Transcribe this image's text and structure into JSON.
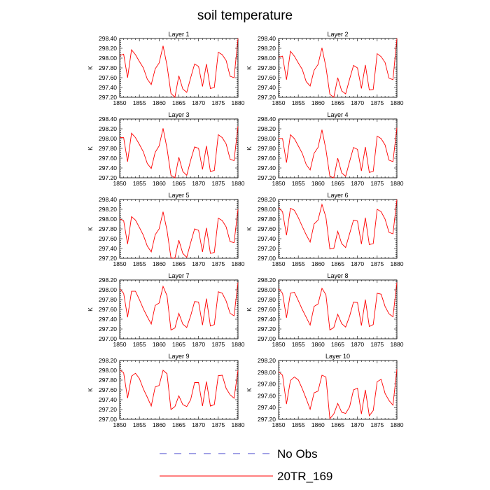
{
  "title": "soil temperature",
  "colors": {
    "model_line": "#ff0000",
    "obs_line": "#4444cc",
    "axis": "#000000",
    "background": "#ffffff"
  },
  "legend": {
    "items": [
      {
        "label": "No Obs",
        "style": "dashed",
        "color": "#4444cc"
      },
      {
        "label": "20TR_169",
        "style": "solid",
        "color": "#ff0000"
      }
    ]
  },
  "chart_data": [
    {
      "type": "line",
      "title": "Layer 1",
      "ylabel": "K",
      "xlim": [
        1850,
        1880
      ],
      "ylim": [
        297.2,
        298.4
      ],
      "xticks": [
        1850,
        1855,
        1860,
        1865,
        1870,
        1875,
        1880
      ],
      "yticks": [
        "297.20",
        "297.40",
        "297.60",
        "297.80",
        "298.00",
        "298.20",
        "298.40"
      ],
      "x": [
        1850,
        1851,
        1852,
        1853,
        1854,
        1855,
        1856,
        1857,
        1858,
        1859,
        1860,
        1861,
        1862,
        1863,
        1864,
        1865,
        1866,
        1867,
        1868,
        1869,
        1870,
        1871,
        1872,
        1873,
        1874,
        1875,
        1876,
        1877,
        1878,
        1879,
        1880
      ],
      "series": [
        {
          "name": "20TR_169",
          "values": [
            298.05,
            298.08,
            297.6,
            298.17,
            298.07,
            297.93,
            297.8,
            297.57,
            297.46,
            297.78,
            297.9,
            298.25,
            297.85,
            297.28,
            297.2,
            297.64,
            297.37,
            297.3,
            297.6,
            297.88,
            297.83,
            297.42,
            297.88,
            297.38,
            297.4,
            298.12,
            298.07,
            297.95,
            297.63,
            297.6,
            298.4
          ]
        }
      ]
    },
    {
      "type": "line",
      "title": "Layer 2",
      "ylabel": "K",
      "xlim": [
        1850,
        1880
      ],
      "ylim": [
        297.2,
        298.4
      ],
      "xticks": [
        1850,
        1855,
        1860,
        1865,
        1870,
        1875,
        1880
      ],
      "yticks": [
        "297.20",
        "297.40",
        "297.60",
        "297.80",
        "298.00",
        "298.20",
        "298.40"
      ],
      "x": [
        1850,
        1851,
        1852,
        1853,
        1854,
        1855,
        1856,
        1857,
        1858,
        1859,
        1860,
        1861,
        1862,
        1863,
        1864,
        1865,
        1866,
        1867,
        1868,
        1869,
        1870,
        1871,
        1872,
        1873,
        1874,
        1875,
        1876,
        1877,
        1878,
        1879,
        1880
      ],
      "series": [
        {
          "name": "20TR_169",
          "values": [
            298.02,
            298.04,
            297.56,
            298.14,
            298.04,
            297.9,
            297.77,
            297.52,
            297.43,
            297.75,
            297.87,
            298.21,
            297.82,
            297.26,
            297.2,
            297.6,
            297.33,
            297.27,
            297.57,
            297.85,
            297.8,
            297.38,
            297.86,
            297.35,
            297.36,
            298.09,
            298.03,
            297.91,
            297.59,
            297.56,
            298.4
          ]
        }
      ]
    },
    {
      "type": "line",
      "title": "Layer 3",
      "ylabel": "K",
      "xlim": [
        1850,
        1880
      ],
      "ylim": [
        297.2,
        298.4
      ],
      "xticks": [
        1850,
        1855,
        1860,
        1865,
        1870,
        1875,
        1880
      ],
      "yticks": [
        "297.20",
        "297.40",
        "297.60",
        "297.80",
        "298.00",
        "298.20",
        "298.40"
      ],
      "x": [
        1850,
        1851,
        1852,
        1853,
        1854,
        1855,
        1856,
        1857,
        1858,
        1859,
        1860,
        1861,
        1862,
        1863,
        1864,
        1865,
        1866,
        1867,
        1868,
        1869,
        1870,
        1871,
        1872,
        1873,
        1874,
        1875,
        1876,
        1877,
        1878,
        1879,
        1880
      ],
      "series": [
        {
          "name": "20TR_169",
          "values": [
            298.02,
            298.02,
            297.53,
            298.11,
            298.02,
            297.88,
            297.73,
            297.49,
            297.39,
            297.72,
            297.85,
            298.21,
            297.8,
            297.25,
            297.2,
            297.62,
            297.33,
            297.25,
            297.56,
            297.83,
            297.8,
            297.37,
            297.85,
            297.33,
            297.35,
            298.08,
            298.02,
            297.89,
            297.58,
            297.55,
            298.25
          ]
        }
      ]
    },
    {
      "type": "line",
      "title": "Layer 4",
      "ylabel": "K",
      "xlim": [
        1850,
        1880
      ],
      "ylim": [
        297.2,
        298.4
      ],
      "xticks": [
        1850,
        1855,
        1860,
        1865,
        1870,
        1875,
        1880
      ],
      "yticks": [
        "297.20",
        "297.40",
        "297.60",
        "297.80",
        "298.00",
        "298.20",
        "298.40"
      ],
      "x": [
        1850,
        1851,
        1852,
        1853,
        1854,
        1855,
        1856,
        1857,
        1858,
        1859,
        1860,
        1861,
        1862,
        1863,
        1864,
        1865,
        1866,
        1867,
        1868,
        1869,
        1870,
        1871,
        1872,
        1873,
        1874,
        1875,
        1876,
        1877,
        1878,
        1879,
        1880
      ],
      "series": [
        {
          "name": "20TR_169",
          "values": [
            298.0,
            298.0,
            297.51,
            298.08,
            298.0,
            297.85,
            297.7,
            297.47,
            297.36,
            297.7,
            297.82,
            298.18,
            297.78,
            297.23,
            297.2,
            297.6,
            297.3,
            297.23,
            297.53,
            297.82,
            297.78,
            297.34,
            297.83,
            297.31,
            297.33,
            298.05,
            298.0,
            297.87,
            297.56,
            297.53,
            298.22
          ]
        }
      ]
    },
    {
      "type": "line",
      "title": "Layer 5",
      "ylabel": "K",
      "xlim": [
        1850,
        1880
      ],
      "ylim": [
        297.2,
        298.4
      ],
      "xticks": [
        1850,
        1855,
        1860,
        1865,
        1870,
        1875,
        1880
      ],
      "yticks": [
        "297.20",
        "297.40",
        "297.60",
        "297.80",
        "298.00",
        "298.20",
        "298.40"
      ],
      "x": [
        1850,
        1851,
        1852,
        1853,
        1854,
        1855,
        1856,
        1857,
        1858,
        1859,
        1860,
        1861,
        1862,
        1863,
        1864,
        1865,
        1866,
        1867,
        1868,
        1869,
        1870,
        1871,
        1872,
        1873,
        1874,
        1875,
        1876,
        1877,
        1878,
        1879,
        1880
      ],
      "series": [
        {
          "name": "20TR_169",
          "values": [
            298.0,
            297.97,
            297.49,
            298.05,
            297.98,
            297.83,
            297.67,
            297.45,
            297.33,
            297.68,
            297.8,
            298.15,
            297.77,
            297.21,
            297.2,
            297.57,
            297.3,
            297.22,
            297.52,
            297.8,
            297.77,
            297.33,
            297.82,
            297.3,
            297.32,
            298.02,
            297.97,
            297.84,
            297.54,
            297.52,
            298.2
          ]
        }
      ]
    },
    {
      "type": "line",
      "title": "Layer 6",
      "ylabel": "K",
      "xlim": [
        1850,
        1880
      ],
      "ylim": [
        297.0,
        298.2
      ],
      "xticks": [
        1850,
        1855,
        1860,
        1865,
        1870,
        1875,
        1880
      ],
      "yticks": [
        "297.00",
        "297.20",
        "297.40",
        "297.60",
        "297.80",
        "298.00",
        "298.20"
      ],
      "x": [
        1850,
        1851,
        1852,
        1853,
        1854,
        1855,
        1856,
        1857,
        1858,
        1859,
        1860,
        1861,
        1862,
        1863,
        1864,
        1865,
        1866,
        1867,
        1868,
        1869,
        1870,
        1871,
        1872,
        1873,
        1874,
        1875,
        1876,
        1877,
        1878,
        1879,
        1880
      ],
      "series": [
        {
          "name": "20TR_169",
          "values": [
            298.03,
            297.95,
            297.47,
            298.02,
            297.98,
            297.83,
            297.65,
            297.48,
            297.33,
            297.7,
            297.78,
            298.1,
            297.84,
            297.19,
            297.2,
            297.55,
            297.3,
            297.22,
            297.5,
            297.78,
            297.76,
            297.29,
            297.83,
            297.28,
            297.3,
            298.0,
            297.95,
            297.8,
            297.53,
            297.5,
            298.2
          ]
        }
      ]
    },
    {
      "type": "line",
      "title": "Layer 7",
      "ylabel": "K",
      "xlim": [
        1850,
        1880
      ],
      "ylim": [
        297.0,
        298.2
      ],
      "xticks": [
        1850,
        1855,
        1860,
        1865,
        1870,
        1875,
        1880
      ],
      "yticks": [
        "297.00",
        "297.20",
        "297.40",
        "297.60",
        "297.80",
        "298.00",
        "298.20"
      ],
      "x": [
        1850,
        1851,
        1852,
        1853,
        1854,
        1855,
        1856,
        1857,
        1858,
        1859,
        1860,
        1861,
        1862,
        1863,
        1864,
        1865,
        1866,
        1867,
        1868,
        1869,
        1870,
        1871,
        1872,
        1873,
        1874,
        1875,
        1876,
        1877,
        1878,
        1879,
        1880
      ],
      "series": [
        {
          "name": "20TR_169",
          "values": [
            298.02,
            297.93,
            297.44,
            297.97,
            297.97,
            297.8,
            297.61,
            297.45,
            297.3,
            297.68,
            297.73,
            298.07,
            297.88,
            297.18,
            297.22,
            297.52,
            297.3,
            297.23,
            297.47,
            297.76,
            297.75,
            297.28,
            297.82,
            297.26,
            297.29,
            297.96,
            297.93,
            297.77,
            297.52,
            297.47,
            298.15
          ]
        }
      ]
    },
    {
      "type": "line",
      "title": "Layer 8",
      "ylabel": "K",
      "xlim": [
        1850,
        1880
      ],
      "ylim": [
        297.0,
        298.2
      ],
      "xticks": [
        1850,
        1855,
        1860,
        1865,
        1870,
        1875,
        1880
      ],
      "yticks": [
        "297.00",
        "297.20",
        "297.40",
        "297.60",
        "297.80",
        "298.00",
        "298.20"
      ],
      "x": [
        1850,
        1851,
        1852,
        1853,
        1854,
        1855,
        1856,
        1857,
        1858,
        1859,
        1860,
        1861,
        1862,
        1863,
        1864,
        1865,
        1866,
        1867,
        1868,
        1869,
        1870,
        1871,
        1872,
        1873,
        1874,
        1875,
        1876,
        1877,
        1878,
        1879,
        1880
      ],
      "series": [
        {
          "name": "20TR_169",
          "values": [
            298.02,
            297.93,
            297.43,
            297.93,
            297.95,
            297.78,
            297.6,
            297.44,
            297.28,
            297.66,
            297.71,
            298.03,
            297.9,
            297.18,
            297.23,
            297.5,
            297.31,
            297.24,
            297.46,
            297.75,
            297.74,
            297.27,
            297.8,
            297.25,
            297.29,
            297.93,
            297.91,
            297.66,
            297.51,
            297.45,
            298.15
          ]
        }
      ]
    },
    {
      "type": "line",
      "title": "Layer 9",
      "ylabel": "K",
      "xlim": [
        1850,
        1880
      ],
      "ylim": [
        297.0,
        298.2
      ],
      "xticks": [
        1850,
        1855,
        1860,
        1865,
        1870,
        1875,
        1880
      ],
      "yticks": [
        "297.00",
        "297.20",
        "297.40",
        "297.60",
        "297.80",
        "298.00",
        "298.20"
      ],
      "x": [
        1850,
        1851,
        1852,
        1853,
        1854,
        1855,
        1856,
        1857,
        1858,
        1859,
        1860,
        1861,
        1862,
        1863,
        1864,
        1865,
        1866,
        1867,
        1868,
        1869,
        1870,
        1871,
        1872,
        1873,
        1874,
        1875,
        1876,
        1877,
        1878,
        1879,
        1880
      ],
      "series": [
        {
          "name": "20TR_169",
          "values": [
            298.01,
            297.95,
            297.43,
            297.88,
            297.94,
            297.83,
            297.62,
            297.45,
            297.27,
            297.66,
            297.69,
            298.0,
            297.93,
            297.2,
            297.26,
            297.48,
            297.3,
            297.26,
            297.4,
            297.75,
            297.75,
            297.27,
            297.77,
            297.27,
            297.3,
            297.89,
            297.9,
            297.63,
            297.5,
            297.43,
            298.0
          ]
        }
      ]
    },
    {
      "type": "line",
      "title": "Layer 10",
      "ylabel": "K",
      "xlim": [
        1850,
        1880
      ],
      "ylim": [
        297.2,
        298.2
      ],
      "xticks": [
        1850,
        1855,
        1860,
        1865,
        1870,
        1875,
        1880
      ],
      "yticks": [
        "297.20",
        "297.40",
        "297.60",
        "297.80",
        "298.00",
        "298.20"
      ],
      "x": [
        1850,
        1851,
        1852,
        1853,
        1854,
        1855,
        1856,
        1857,
        1858,
        1859,
        1860,
        1861,
        1862,
        1863,
        1864,
        1865,
        1866,
        1867,
        1868,
        1869,
        1870,
        1871,
        1872,
        1873,
        1874,
        1875,
        1876,
        1877,
        1878,
        1879,
        1880
      ],
      "series": [
        {
          "name": "20TR_169",
          "values": [
            298.01,
            297.95,
            297.46,
            297.86,
            297.92,
            297.87,
            297.72,
            297.55,
            297.37,
            297.65,
            297.68,
            297.95,
            297.92,
            297.21,
            297.29,
            297.47,
            297.32,
            297.3,
            297.41,
            297.7,
            297.73,
            297.29,
            297.7,
            297.26,
            297.35,
            297.84,
            297.88,
            297.64,
            297.52,
            297.44,
            298.05
          ]
        }
      ]
    }
  ]
}
